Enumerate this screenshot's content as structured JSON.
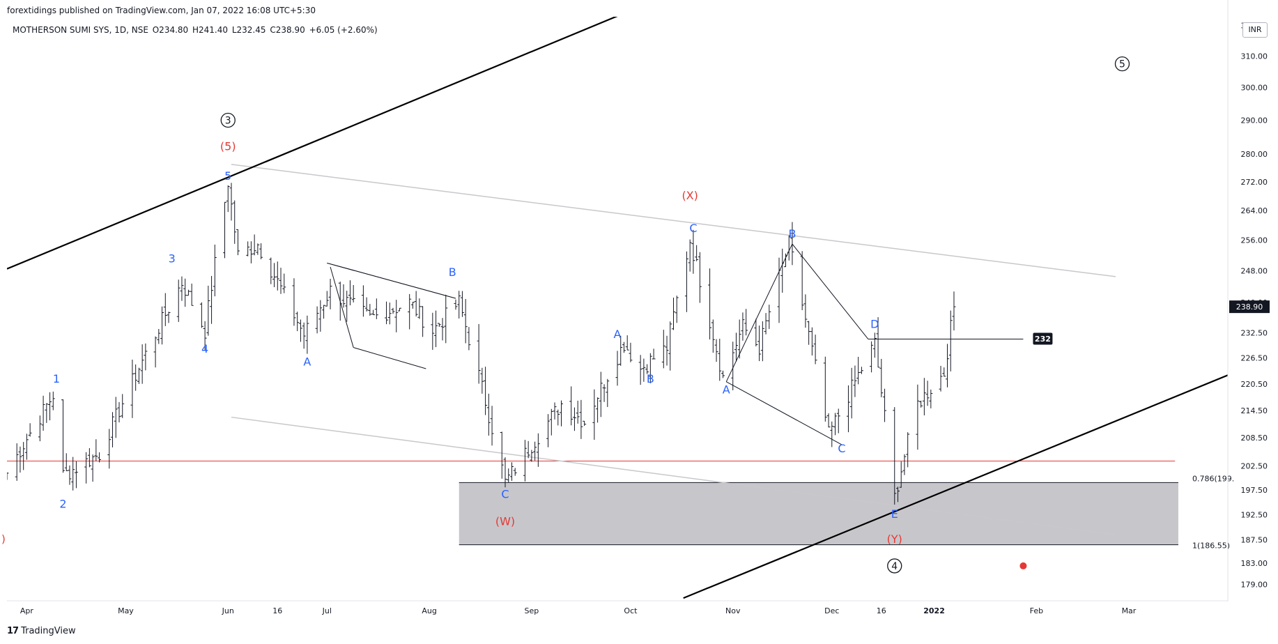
{
  "header": {
    "published": "forextidings published on TradingView.com, Jan 07, 2022 16:08 UTC+5:30"
  },
  "symbol": {
    "name": "MOTHERSON SUMI SYS, 1D, NSE",
    "open": "O234.80",
    "high": "H241.40",
    "low": "L232.45",
    "close": "C238.90",
    "change": "+6.05 (+2.60%)"
  },
  "currency": "INR",
  "brand": "TradingView",
  "colors": {
    "bar": "#131722",
    "wave_blue": "#2962ff",
    "wave_red": "#e53935",
    "channel_black": "#000000",
    "channel_grey": "#c8c8cc",
    "zone_fill": "#c4c4c8",
    "hline_red": "#e53935"
  },
  "chart_data": {
    "type": "ohlc",
    "title": "MOTHERSON SUMI SYS, 1D, NSE",
    "y_scale": "log",
    "ylim": [
      176,
      322
    ],
    "y_ticks": [
      179.0,
      183.0,
      187.5,
      192.5,
      197.5,
      202.5,
      208.5,
      214.5,
      220.5,
      226.5,
      232.5,
      240.0,
      248.0,
      256.0,
      264.0,
      272.0,
      280.0,
      290.0,
      300.0,
      310.0,
      320.0
    ],
    "y_tick_labels": [
      "179.00",
      "183.00",
      "187.50",
      "192.50",
      "197.50",
      "202.50",
      "208.50",
      "214.50",
      "220.50",
      "226.50",
      "232.50",
      "240.00",
      "248.00",
      "256.00",
      "264.00",
      "272.00",
      "280.00",
      "290.00",
      "300.00",
      "310.00",
      "320.00"
    ],
    "x_ticks": [
      {
        "label": "Apr",
        "date": "2021-04-01"
      },
      {
        "label": "May",
        "date": "2021-05-01"
      },
      {
        "label": "Jun",
        "date": "2021-06-01"
      },
      {
        "label": "16",
        "date": "2021-06-16"
      },
      {
        "label": "Jul",
        "date": "2021-07-01"
      },
      {
        "label": "Aug",
        "date": "2021-08-01"
      },
      {
        "label": "Sep",
        "date": "2021-09-01"
      },
      {
        "label": "Oct",
        "date": "2021-10-01"
      },
      {
        "label": "Nov",
        "date": "2021-11-01"
      },
      {
        "label": "Dec",
        "date": "2021-12-01"
      },
      {
        "label": "16",
        "date": "2021-12-16"
      },
      {
        "label": "2022",
        "date": "2022-01-01"
      },
      {
        "label": "Feb",
        "date": "2022-02-01"
      },
      {
        "label": "Mar",
        "date": "2022-03-01"
      }
    ],
    "xlim": [
      "2021-03-26",
      "2022-03-31"
    ],
    "pivots": [
      {
        "date": "2021-03-26",
        "price": 201.0
      },
      {
        "date": "2021-04-09",
        "price": 218.0
      },
      {
        "date": "2021-04-12",
        "price": 200.5
      },
      {
        "date": "2021-04-23",
        "price": 205.0
      },
      {
        "date": "2021-05-18",
        "price": 245.0
      },
      {
        "date": "2021-05-25",
        "price": 233.0
      },
      {
        "date": "2021-06-01",
        "price": 272.0
      },
      {
        "date": "2021-06-04",
        "price": 252.0
      },
      {
        "date": "2021-06-10",
        "price": 255.0
      },
      {
        "date": "2021-06-24",
        "price": 232.0
      },
      {
        "date": "2021-07-02",
        "price": 243.0
      },
      {
        "date": "2021-07-14",
        "price": 236.0
      },
      {
        "date": "2021-07-26",
        "price": 240.0
      },
      {
        "date": "2021-08-02",
        "price": 233.0
      },
      {
        "date": "2021-08-10",
        "price": 240.0
      },
      {
        "date": "2021-08-24",
        "price": 199.0
      },
      {
        "date": "2021-09-10",
        "price": 216.0
      },
      {
        "date": "2021-09-17",
        "price": 212.0
      },
      {
        "date": "2021-09-29",
        "price": 230.0
      },
      {
        "date": "2021-10-04",
        "price": 224.0
      },
      {
        "date": "2021-10-12",
        "price": 229.0
      },
      {
        "date": "2021-10-19",
        "price": 256.0
      },
      {
        "date": "2021-10-29",
        "price": 222.0
      },
      {
        "date": "2021-11-04",
        "price": 234.0
      },
      {
        "date": "2021-11-09",
        "price": 229.0
      },
      {
        "date": "2021-11-18",
        "price": 255.0
      },
      {
        "date": "2021-11-30",
        "price": 209.0
      },
      {
        "date": "2021-12-14",
        "price": 230.0
      },
      {
        "date": "2021-12-20",
        "price": 196.0
      },
      {
        "date": "2021-12-27",
        "price": 216.0
      },
      {
        "date": "2022-01-04",
        "price": 223.0
      },
      {
        "date": "2022-01-07",
        "price": 238.9
      }
    ],
    "last_price": "238.90",
    "annotations": {
      "wave_labels_blue": [
        "1",
        "2",
        "3",
        "4",
        "5",
        "A",
        "B",
        "C",
        "A",
        "B",
        "C",
        "A",
        "B",
        "C",
        "D",
        "E"
      ],
      "wave_labels_red": [
        "(5)",
        "(W)",
        "(X)",
        "(Y)"
      ],
      "wave_labels_circled": [
        "3",
        "4",
        "5"
      ],
      "level_label": "232",
      "fib_labels": [
        "0.786(199.",
        "1(186.55)"
      ],
      "fib_levels": [
        199.0,
        186.55
      ],
      "red_hline_price": 203.5
    }
  }
}
